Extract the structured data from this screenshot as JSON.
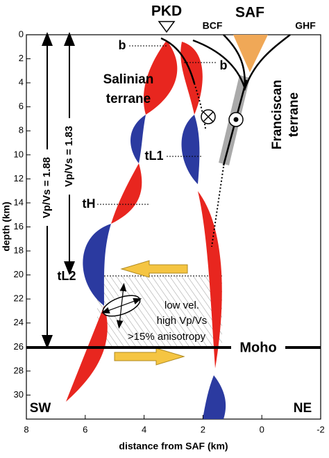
{
  "axes": {
    "xlabel": "distance from SAF (km)",
    "ylabel": "depth (km)",
    "xlim": [
      8,
      -2
    ],
    "xticks": [
      8,
      6,
      4,
      2,
      0,
      -2
    ],
    "ylim": [
      0,
      32
    ],
    "yticks": [
      0,
      2,
      4,
      6,
      8,
      10,
      12,
      14,
      16,
      18,
      20,
      22,
      24,
      26,
      28,
      30
    ]
  },
  "labels": {
    "pkd": "PKD",
    "saf": "SAF",
    "bcf": "BCF",
    "ghf": "GHF",
    "b1": "b",
    "b2": "b",
    "salinian": [
      "Salinian",
      "terrane"
    ],
    "franciscan": [
      "Franciscan",
      "terrane"
    ],
    "tl1": "tL1",
    "th": "tH",
    "tl2": "tL2",
    "vp188": "Vp/Vs = 1.88",
    "vp183": "Vp/Vs = 1.83",
    "zone": [
      "low vel.",
      "high Vp/Vs",
      ">15% anisotropy"
    ],
    "moho": "Moho",
    "sw": "SW",
    "ne": "NE"
  }
}
